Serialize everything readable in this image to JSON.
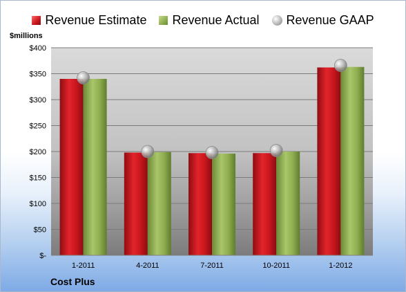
{
  "legend": {
    "estimate": "Revenue Estimate",
    "actual": "Revenue Actual",
    "gaap": "Revenue GAAP"
  },
  "unit_label": "$millions",
  "company_label": "Cost Plus",
  "colors": {
    "estimate": "#c8161d",
    "actual": "#8fae4f",
    "gaap": "#b7b7b7"
  },
  "chart_data": {
    "type": "bar",
    "categories": [
      "1-2011",
      "4-2011",
      "7-2011",
      "10-2011",
      "1-2012"
    ],
    "series": [
      {
        "name": "Revenue Estimate",
        "values": [
          340,
          198,
          197,
          197,
          362
        ]
      },
      {
        "name": "Revenue Actual",
        "values": [
          340,
          199,
          196,
          200,
          363
        ]
      },
      {
        "name": "Revenue GAAP",
        "values": [
          342,
          200,
          198,
          202,
          366
        ]
      }
    ],
    "ylim": [
      0,
      400
    ],
    "yticks": [
      0,
      50,
      100,
      150,
      200,
      250,
      300,
      350,
      400
    ],
    "ytick_labels": [
      "$-",
      "$50",
      "$100",
      "$150",
      "$200",
      "$250",
      "$300",
      "$350",
      "$400"
    ],
    "grid": true,
    "legend_position": "top"
  }
}
